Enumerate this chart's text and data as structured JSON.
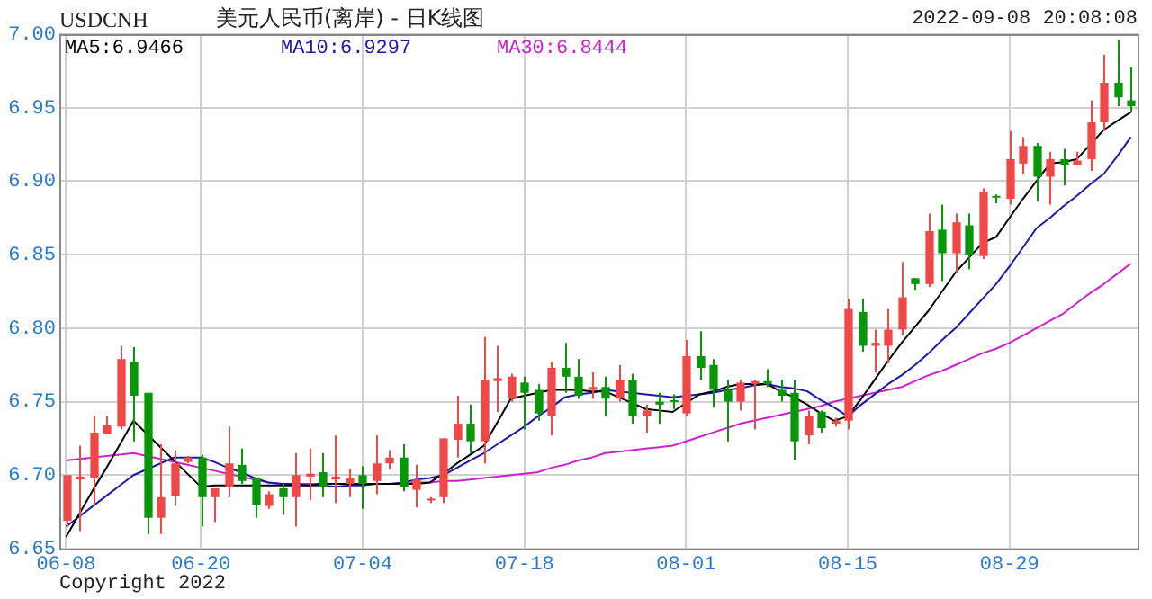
{
  "chart_data": {
    "type": "candlestick",
    "title": "美元人民币(离岸) - 日K线图",
    "subtitle": "USDCNH",
    "annotations": [
      "2022-09-08 20:08:08",
      "Copyright 2022"
    ],
    "categories": [
      "06-08",
      null,
      null,
      null,
      null,
      null,
      null,
      null,
      null,
      null,
      "06-20",
      null,
      null,
      null,
      null,
      null,
      null,
      null,
      null,
      null,
      null,
      null,
      "07-04",
      null,
      null,
      null,
      null,
      null,
      null,
      null,
      null,
      null,
      null,
      null,
      "07-18",
      null,
      null,
      null,
      null,
      null,
      null,
      null,
      null,
      null,
      null,
      null,
      "08-01",
      null,
      null,
      null,
      null,
      null,
      null,
      null,
      null,
      null,
      null,
      null,
      "08-15",
      null,
      null,
      null,
      null,
      null,
      null,
      null,
      null,
      null,
      null,
      null,
      "08-29",
      null,
      null,
      null,
      null,
      null,
      null,
      null,
      null,
      null
    ],
    "ohlc": [
      [
        6.669,
        6.7,
        6.665,
        6.7
      ],
      [
        6.697,
        6.72,
        6.662,
        6.699
      ],
      [
        6.698,
        6.74,
        6.68,
        6.729
      ],
      [
        6.728,
        6.74,
        6.728,
        6.734
      ],
      [
        6.733,
        6.788,
        6.731,
        6.779
      ],
      [
        6.777,
        6.787,
        6.723,
        6.754
      ],
      [
        6.756,
        6.756,
        6.66,
        6.671
      ],
      [
        6.671,
        6.721,
        6.66,
        6.685
      ],
      [
        6.686,
        6.717,
        6.679,
        6.708
      ],
      [
        6.709,
        6.713,
        6.708,
        6.712
      ],
      [
        6.712,
        6.714,
        6.665,
        6.685
      ],
      [
        6.685,
        6.691,
        6.668,
        6.691
      ],
      [
        6.692,
        6.733,
        6.685,
        6.708
      ],
      [
        6.707,
        6.718,
        6.694,
        6.696
      ],
      [
        6.698,
        6.698,
        6.671,
        6.68
      ],
      [
        6.679,
        6.689,
        6.677,
        6.687
      ],
      [
        6.691,
        6.694,
        6.673,
        6.685
      ],
      [
        6.685,
        6.715,
        6.665,
        6.7
      ],
      [
        6.699,
        6.718,
        6.683,
        6.701
      ],
      [
        6.702,
        6.715,
        6.685,
        6.692
      ],
      [
        6.697,
        6.727,
        6.681,
        6.699
      ],
      [
        6.694,
        6.704,
        6.685,
        6.698
      ],
      [
        6.7,
        6.706,
        6.677,
        6.694
      ],
      [
        6.696,
        6.727,
        6.687,
        6.708
      ],
      [
        6.708,
        6.717,
        6.704,
        6.712
      ],
      [
        6.712,
        6.721,
        6.689,
        6.692
      ],
      [
        6.69,
        6.707,
        6.678,
        6.697
      ],
      [
        6.683,
        6.685,
        6.681,
        6.684
      ],
      [
        6.685,
        6.725,
        6.681,
        6.725
      ],
      [
        6.724,
        6.754,
        6.712,
        6.735
      ],
      [
        6.735,
        6.748,
        6.715,
        6.723
      ],
      [
        6.723,
        6.794,
        6.708,
        6.765
      ],
      [
        6.764,
        6.788,
        6.743,
        6.766
      ],
      [
        6.752,
        6.769,
        6.75,
        6.767
      ],
      [
        6.763,
        6.767,
        6.731,
        6.756
      ],
      [
        6.758,
        6.762,
        6.737,
        6.742
      ],
      [
        6.74,
        6.777,
        6.727,
        6.773
      ],
      [
        6.773,
        6.79,
        6.756,
        6.767
      ],
      [
        6.767,
        6.779,
        6.752,
        6.754
      ],
      [
        6.758,
        6.77,
        6.752,
        6.76
      ],
      [
        6.76,
        6.767,
        6.74,
        6.752
      ],
      [
        6.752,
        6.775,
        6.75,
        6.765
      ],
      [
        6.765,
        6.769,
        6.735,
        6.74
      ],
      [
        6.74,
        6.748,
        6.729,
        6.744
      ],
      [
        6.75,
        6.756,
        6.735,
        6.748
      ],
      [
        6.751,
        6.755,
        6.745,
        6.75
      ],
      [
        6.742,
        6.792,
        6.74,
        6.781
      ],
      [
        6.781,
        6.798,
        6.765,
        6.773
      ],
      [
        6.775,
        6.779,
        6.746,
        6.758
      ],
      [
        6.758,
        6.765,
        6.723,
        6.75
      ],
      [
        6.75,
        6.765,
        6.744,
        6.763
      ],
      [
        6.762,
        6.765,
        6.731,
        6.764
      ],
      [
        6.764,
        6.772,
        6.76,
        6.762
      ],
      [
        6.758,
        6.765,
        6.75,
        6.754
      ],
      [
        6.756,
        6.765,
        6.71,
        6.723
      ],
      [
        6.727,
        6.744,
        6.721,
        6.74
      ],
      [
        6.743,
        6.744,
        6.729,
        6.732
      ],
      [
        6.735,
        6.739,
        6.733,
        6.737
      ],
      [
        6.737,
        6.82,
        6.731,
        6.813
      ],
      [
        6.811,
        6.82,
        6.784,
        6.788
      ],
      [
        6.788,
        6.799,
        6.77,
        6.79
      ],
      [
        6.788,
        6.813,
        6.776,
        6.799
      ],
      [
        6.799,
        6.845,
        6.795,
        6.821
      ],
      [
        6.834,
        6.834,
        6.826,
        6.83
      ],
      [
        6.83,
        6.878,
        6.828,
        6.866
      ],
      [
        6.867,
        6.884,
        6.832,
        6.851
      ],
      [
        6.851,
        6.878,
        6.838,
        6.872
      ],
      [
        6.87,
        6.878,
        6.84,
        6.85
      ],
      [
        6.849,
        6.895,
        6.847,
        6.893
      ],
      [
        6.89,
        6.891,
        6.885,
        6.889
      ],
      [
        6.888,
        6.934,
        6.884,
        6.915
      ],
      [
        6.912,
        6.93,
        6.905,
        6.924
      ],
      [
        6.924,
        6.926,
        6.886,
        6.903
      ],
      [
        6.903,
        6.92,
        6.884,
        6.915
      ],
      [
        6.915,
        6.922,
        6.897,
        6.911
      ],
      [
        6.911,
        6.92,
        6.911,
        6.914
      ],
      [
        6.915,
        6.955,
        6.907,
        6.94
      ],
      [
        6.94,
        6.986,
        6.934,
        6.967
      ],
      [
        6.967,
        6.996,
        6.951,
        6.957
      ],
      [
        6.955,
        6.978,
        6.947,
        6.951
      ]
    ],
    "colors": [
      "#f04848",
      "#f04848",
      "#f04848",
      "#f04848",
      "#f04848",
      "#0a960a",
      "#0a960a",
      "#f04848",
      "#f04848",
      "#f04848",
      "#0a960a",
      "#f04848",
      "#f04848",
      "#0a960a",
      "#0a960a",
      "#f04848",
      "#0a960a",
      "#f04848",
      "#f04848",
      "#0a960a",
      "#f04848",
      "#f04848",
      "#0a960a",
      "#f04848",
      "#f04848",
      "#0a960a",
      "#f04848",
      "#f04848",
      "#f04848",
      "#f04848",
      "#0a960a",
      "#f04848",
      "#f04848",
      "#f04848",
      "#0a960a",
      "#0a960a",
      "#f04848",
      "#0a960a",
      "#0a960a",
      "#f04848",
      "#0a960a",
      "#f04848",
      "#0a960a",
      "#f04848",
      "#0a960a",
      "#0a960a",
      "#f04848",
      "#0a960a",
      "#0a960a",
      "#0a960a",
      "#f04848",
      "#f04848",
      "#0a960a",
      "#0a960a",
      "#0a960a",
      "#f04848",
      "#0a960a",
      "#f04848",
      "#f04848",
      "#0a960a",
      "#f04848",
      "#f04848",
      "#f04848",
      "#0a960a",
      "#f04848",
      "#0a960a",
      "#f04848",
      "#0a960a",
      "#f04848",
      "#0a960a",
      "#f04848",
      "#f04848",
      "#0a960a",
      "#f04848",
      "#0a960a",
      "#f04848",
      "#f04848",
      "#f04848",
      "#0a960a",
      "#0a960a"
    ],
    "series": [
      {
        "type": "line",
        "name": "MA5:6.9466",
        "color": "#000000",
        "values": [
          6.658,
          6.674,
          6.69,
          6.705,
          6.721,
          6.737,
          6.728,
          6.719,
          6.71,
          6.701,
          6.692,
          6.693,
          6.693,
          6.693,
          6.693,
          6.693,
          6.693,
          6.693,
          6.693,
          6.694,
          6.694,
          6.694,
          6.694,
          6.694,
          6.694,
          6.694,
          6.694,
          6.695,
          6.701,
          6.708,
          6.714,
          6.72,
          6.736,
          6.752,
          6.754,
          6.756,
          6.758,
          6.758,
          6.758,
          6.757,
          6.757,
          6.753,
          6.749,
          6.745,
          6.744,
          6.743,
          6.749,
          6.755,
          6.757,
          6.76,
          6.762,
          6.762,
          6.762,
          6.757,
          6.753,
          6.748,
          6.742,
          6.737,
          6.74,
          6.752,
          6.765,
          6.778,
          6.79,
          6.801,
          6.812,
          6.825,
          6.838,
          6.848,
          6.858,
          6.862,
          6.875,
          6.888,
          6.9,
          6.912,
          6.913,
          6.915,
          6.925,
          6.935,
          6.941,
          6.947
        ]
      },
      {
        "type": "line",
        "name": "MA10:6.9297",
        "color": "#1a1aa6",
        "values": [
          6.665,
          6.672,
          6.679,
          6.686,
          6.693,
          6.7,
          6.704,
          6.708,
          6.712,
          6.712,
          6.712,
          6.709,
          6.705,
          6.702,
          6.698,
          6.695,
          6.694,
          6.694,
          6.693,
          6.693,
          6.692,
          6.693,
          6.693,
          6.694,
          6.694,
          6.695,
          6.697,
          6.698,
          6.7,
          6.705,
          6.71,
          6.715,
          6.721,
          6.727,
          6.733,
          6.74,
          6.746,
          6.753,
          6.755,
          6.756,
          6.758,
          6.757,
          6.756,
          6.755,
          6.754,
          6.753,
          6.754,
          6.755,
          6.756,
          6.758,
          6.759,
          6.761,
          6.762,
          6.76,
          6.759,
          6.757,
          6.751,
          6.746,
          6.74,
          6.748,
          6.755,
          6.762,
          6.768,
          6.775,
          6.783,
          6.792,
          6.8,
          6.81,
          6.82,
          6.83,
          6.842,
          6.855,
          6.868,
          6.875,
          6.883,
          6.89,
          6.898,
          6.905,
          6.917,
          6.93
        ]
      },
      {
        "type": "line",
        "name": "MA30:6.8444",
        "color": "#cc22cc",
        "values": [
          6.71,
          6.711,
          6.712,
          6.713,
          6.714,
          6.715,
          6.713,
          6.711,
          6.709,
          6.707,
          6.705,
          6.703,
          6.701,
          6.699,
          6.697,
          6.695,
          6.694,
          6.694,
          6.694,
          6.694,
          6.694,
          6.694,
          6.694,
          6.694,
          6.694,
          6.694,
          6.695,
          6.695,
          6.696,
          6.696,
          6.697,
          6.698,
          6.699,
          6.7,
          6.701,
          6.702,
          6.705,
          6.707,
          6.71,
          6.712,
          6.715,
          6.716,
          6.717,
          6.718,
          6.719,
          6.72,
          6.723,
          6.726,
          6.729,
          6.732,
          6.735,
          6.737,
          6.739,
          6.741,
          6.743,
          6.745,
          6.747,
          6.75,
          6.752,
          6.754,
          6.756,
          6.758,
          6.76,
          6.764,
          6.768,
          6.771,
          6.775,
          6.779,
          6.783,
          6.786,
          6.79,
          6.795,
          6.8,
          6.805,
          6.81,
          6.817,
          6.824,
          6.83,
          6.837,
          6.844
        ]
      }
    ],
    "ylim": [
      6.65,
      7.0
    ],
    "yticks": [
      6.65,
      {
        "value": 6.7,
        "label": "6.70"
      },
      6.75,
      {
        "value": 6.8,
        "label": "6.80"
      },
      6.85,
      {
        "value": 6.9,
        "label": "6.90"
      },
      6.95,
      {
        "value": 7.0,
        "label": "7.00"
      }
    ],
    "grid": true,
    "legend": "top"
  }
}
